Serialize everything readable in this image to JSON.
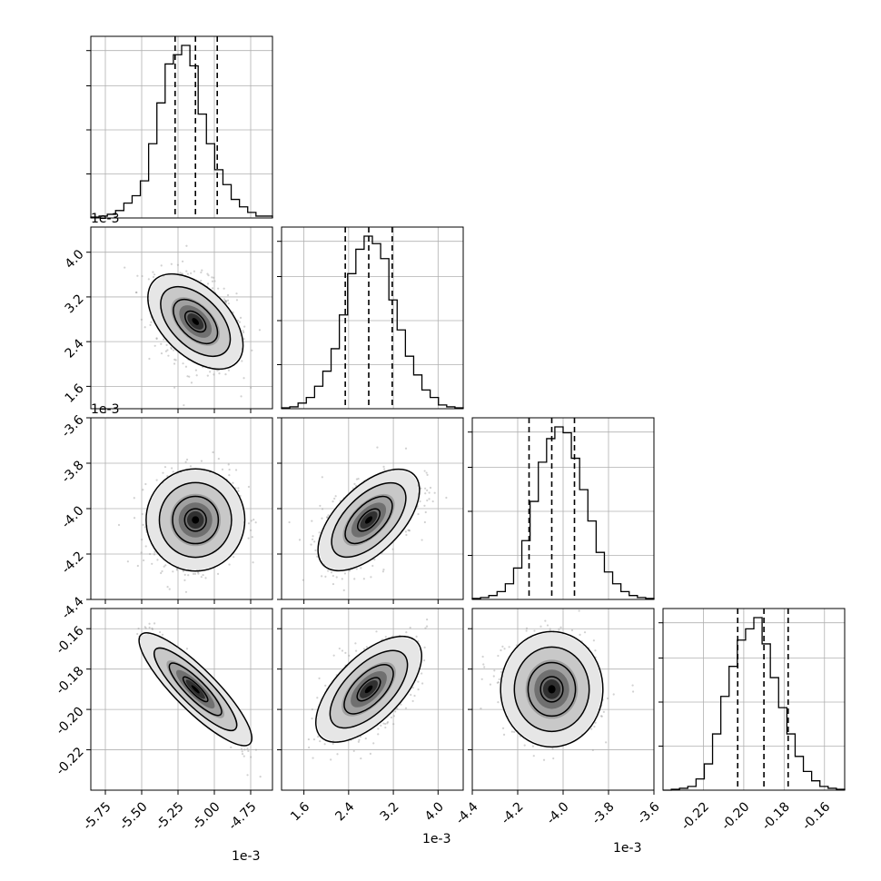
{
  "chart_data": {
    "type": "corner",
    "grid": true,
    "quantile_lines": "dashed",
    "parameters": [
      {
        "range": [
          -5.85,
          -4.6
        ],
        "scale_label": "1e-3",
        "ticks": [
          "-5.75",
          "-5.50",
          "-5.25",
          "-5.00",
          "-4.75"
        ],
        "tick_values": [
          -5.75,
          -5.5,
          -5.25,
          -5.0,
          -4.75
        ],
        "quantiles": [
          -5.27,
          -5.13,
          -4.98
        ],
        "hist": [
          0.005,
          0.01,
          0.02,
          0.04,
          0.08,
          0.12,
          0.2,
          0.4,
          0.62,
          0.83,
          0.88,
          0.93,
          0.82,
          0.56,
          0.4,
          0.26,
          0.18,
          0.1,
          0.06,
          0.03,
          0.01,
          0.01
        ]
      },
      {
        "range": [
          1.2,
          4.45
        ],
        "scale_label": "1e-3",
        "ticks": [
          "1.6",
          "2.4",
          "3.2",
          "4.0"
        ],
        "tick_values": [
          1.6,
          2.4,
          3.2,
          4.0
        ],
        "quantiles": [
          2.34,
          2.76,
          3.18
        ],
        "hist": [
          0.005,
          0.01,
          0.03,
          0.06,
          0.12,
          0.2,
          0.32,
          0.5,
          0.72,
          0.85,
          0.92,
          0.88,
          0.8,
          0.58,
          0.42,
          0.28,
          0.18,
          0.1,
          0.06,
          0.02,
          0.01,
          0.005
        ]
      },
      {
        "range": [
          -4.4,
          -3.6
        ],
        "scale_label": "1e-3",
        "ticks": [
          "-4.4",
          "-4.2",
          "-4.0",
          "-3.8",
          "-3.6"
        ],
        "tick_values": [
          -4.4,
          -4.2,
          -4.0,
          -3.8,
          -3.6
        ],
        "quantiles": [
          -4.15,
          -4.05,
          -3.95
        ],
        "hist": [
          0.005,
          0.01,
          0.02,
          0.04,
          0.08,
          0.16,
          0.3,
          0.5,
          0.7,
          0.82,
          0.88,
          0.85,
          0.72,
          0.56,
          0.4,
          0.24,
          0.14,
          0.08,
          0.04,
          0.02,
          0.01,
          0.005
        ]
      },
      {
        "range": [
          -0.24,
          -0.15
        ],
        "scale_label": "",
        "ticks": [
          "-0.22",
          "-0.20",
          "-0.18",
          "-0.16"
        ],
        "tick_values": [
          -0.22,
          -0.2,
          -0.18,
          -0.16
        ],
        "quantiles": [
          -0.203,
          -0.19,
          -0.178
        ],
        "hist": [
          0.0,
          0.005,
          0.01,
          0.02,
          0.06,
          0.14,
          0.3,
          0.5,
          0.66,
          0.8,
          0.86,
          0.92,
          0.78,
          0.6,
          0.44,
          0.3,
          0.18,
          0.1,
          0.05,
          0.02,
          0.01,
          0.005
        ]
      }
    ],
    "pairs": [
      {
        "row": 1,
        "col": 0,
        "mean": [
          -5.13,
          2.76
        ],
        "sd": [
          0.14,
          0.42
        ],
        "rho": -0.35
      },
      {
        "row": 2,
        "col": 0,
        "mean": [
          -5.13,
          -4.05
        ],
        "sd": [
          0.14,
          0.1
        ],
        "rho": 0.1
      },
      {
        "row": 2,
        "col": 1,
        "mean": [
          2.76,
          -4.05
        ],
        "sd": [
          0.42,
          0.1
        ],
        "rho": 0.55
      },
      {
        "row": 3,
        "col": 0,
        "mean": [
          -5.13,
          -0.19
        ],
        "sd": [
          0.14,
          0.012
        ],
        "rho": -0.92
      },
      {
        "row": 3,
        "col": 1,
        "mean": [
          2.76,
          -0.19
        ],
        "sd": [
          0.42,
          0.012
        ],
        "rho": 0.6
      },
      {
        "row": 3,
        "col": 2,
        "mean": [
          -4.05,
          -0.19
        ],
        "sd": [
          0.1,
          0.012
        ],
        "rho": -0.05
      }
    ],
    "y_axis_ticks": {
      "row1": [
        "1.6",
        "2.4",
        "3.2",
        "4.0"
      ],
      "row2": [
        "-4.4",
        "-4.2",
        "-4.0",
        "-3.8",
        "-3.6"
      ],
      "row3": [
        "-0.22",
        "-0.20",
        "-0.18",
        "-0.16"
      ]
    },
    "y_axis_tick_values": {
      "row1": [
        1.6,
        2.4,
        3.2,
        4.0
      ],
      "row2": [
        -4.4,
        -4.2,
        -4.0,
        -3.8,
        -3.6
      ],
      "row3": [
        -0.22,
        -0.2,
        -0.18,
        -0.16
      ]
    },
    "offset_labels": {
      "top_hist": "1e-3",
      "row1_left": "1e-3",
      "bottom_col0": "1e-3",
      "bottom_col1": "1e-3",
      "bottom_col2": "1e-3"
    }
  }
}
